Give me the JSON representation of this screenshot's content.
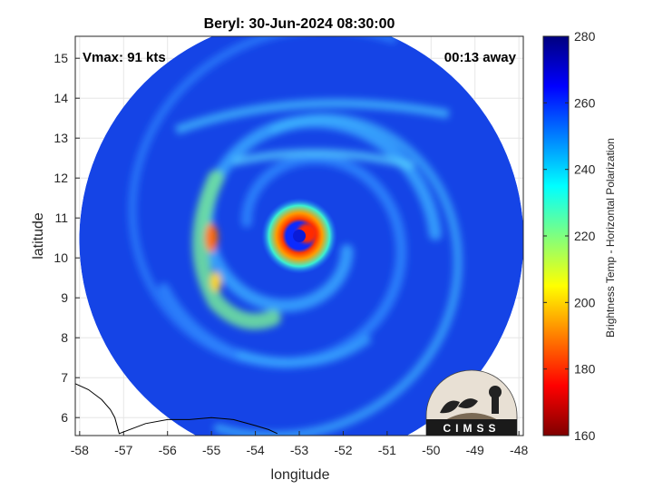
{
  "chart_data": {
    "type": "heatmap",
    "title": "Beryl: 30-Jun-2024 08:30:00",
    "xlabel": "longitude",
    "ylabel": "latitude",
    "xlim": [
      -58.1,
      -47.9
    ],
    "ylim": [
      5.55,
      15.55
    ],
    "xticks": [
      -58,
      -57,
      -56,
      -55,
      -54,
      -53,
      -52,
      -51,
      -50,
      -49,
      -48
    ],
    "yticks": [
      6,
      7,
      8,
      9,
      10,
      11,
      12,
      13,
      14,
      15
    ],
    "grid": true,
    "annotations": {
      "vmax": "Vmax: 91 kts",
      "time_away": "00:13 away"
    },
    "colorbar": {
      "label": "Brightness Temp - Horizontal Polarization",
      "range": [
        160,
        280
      ],
      "ticks": [
        160,
        180,
        200,
        220,
        240,
        260,
        280
      ],
      "colormap": "jet"
    },
    "swath": {
      "center_lon": -52.95,
      "center_lat": 10.45,
      "radius_deg": 5.0
    },
    "storm_center": {
      "lon": -53.0,
      "lat": 10.55
    },
    "logo_text": "CIMSS"
  },
  "colors": {
    "jet": [
      "#00007f",
      "#0000ff",
      "#007fff",
      "#00ffff",
      "#7fff7f",
      "#ffff00",
      "#ff7f00",
      "#ff0000",
      "#7f0000"
    ],
    "background_field": "#1540e0",
    "coast": "#000000"
  }
}
